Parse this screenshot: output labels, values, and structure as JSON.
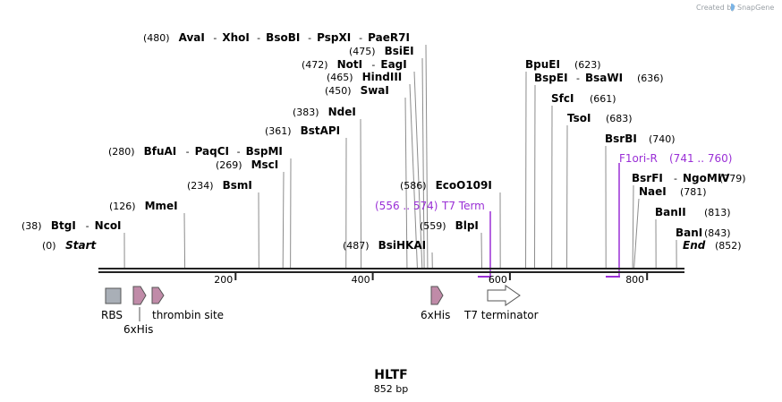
{
  "credit": {
    "created_by": "Created by",
    "brand": "SnapGene"
  },
  "title": "HLTF",
  "length_text": "852 bp",
  "length": 852,
  "ruler": {
    "ticks": [
      200,
      400,
      600,
      800
    ],
    "tick_labels": [
      "200",
      "400",
      "600",
      "800"
    ]
  },
  "sites": [
    {
      "id": "start",
      "pos": 0,
      "pos_text": "(0)",
      "names": [
        "Start"
      ],
      "italic": true
    },
    {
      "id": "btgi",
      "pos": 38,
      "pos_text": "(38)",
      "names": [
        "BtgI",
        "NcoI"
      ]
    },
    {
      "id": "mmei",
      "pos": 126,
      "pos_text": "(126)",
      "names": [
        "MmeI"
      ]
    },
    {
      "id": "bsmi",
      "pos": 234,
      "pos_text": "(234)",
      "names": [
        "BsmI"
      ]
    },
    {
      "id": "msci",
      "pos": 269,
      "pos_text": "(269)",
      "names": [
        "MscI"
      ]
    },
    {
      "id": "bfuai",
      "pos": 280,
      "pos_text": "(280)",
      "names": [
        "BfuAI",
        "PaqCI",
        "BspMI"
      ]
    },
    {
      "id": "bstapi",
      "pos": 361,
      "pos_text": "(361)",
      "names": [
        "BstAPI"
      ]
    },
    {
      "id": "ndei",
      "pos": 383,
      "pos_text": "(383)",
      "names": [
        "NdeI"
      ]
    },
    {
      "id": "swai",
      "pos": 450,
      "pos_text": "(450)",
      "names": [
        "SwaI"
      ]
    },
    {
      "id": "hindiii",
      "pos": 465,
      "pos_text": "(465)",
      "names": [
        "HindIII"
      ]
    },
    {
      "id": "noti",
      "pos": 472,
      "pos_text": "(472)",
      "names": [
        "NotI",
        "EagI"
      ]
    },
    {
      "id": "bsiei",
      "pos": 475,
      "pos_text": "(475)",
      "names": [
        "BsiEI"
      ]
    },
    {
      "id": "avai",
      "pos": 480,
      "pos_text": "(480)",
      "names": [
        "AvaI",
        "XhoI",
        "BsoBI",
        "PspXI",
        "PaeR7I"
      ]
    },
    {
      "id": "bsihkai",
      "pos": 487,
      "pos_text": "(487)",
      "names": [
        "BsiHKAI"
      ]
    },
    {
      "id": "blpi",
      "pos": 559,
      "pos_text": "(559)",
      "names": [
        "BlpI"
      ]
    },
    {
      "id": "eco0109i",
      "pos": 586,
      "pos_text": "(586)",
      "names": [
        "EcoO109I"
      ]
    },
    {
      "id": "bpuei",
      "pos": 623,
      "pos_text": "(623)",
      "names": [
        "BpuEI"
      ]
    },
    {
      "id": "bspei",
      "pos": 636,
      "pos_text": "(636)",
      "names": [
        "BspEI",
        "BsaWI"
      ]
    },
    {
      "id": "sfci",
      "pos": 661,
      "pos_text": "(661)",
      "names": [
        "SfcI"
      ]
    },
    {
      "id": "tsoi",
      "pos": 683,
      "pos_text": "(683)",
      "names": [
        "TsoI"
      ]
    },
    {
      "id": "bsrbi",
      "pos": 740,
      "pos_text": "(740)",
      "names": [
        "BsrBI"
      ]
    },
    {
      "id": "bsrfi",
      "pos": 779,
      "pos_text": "(779)",
      "names": [
        "BsrFI",
        "NgoMIV"
      ]
    },
    {
      "id": "naei",
      "pos": 781,
      "pos_text": "(781)",
      "names": [
        "NaeI"
      ]
    },
    {
      "id": "banii",
      "pos": 813,
      "pos_text": "(813)",
      "names": [
        "BanII"
      ]
    },
    {
      "id": "bani",
      "pos": 843,
      "pos_text": "(843)",
      "names": [
        "BanI"
      ]
    },
    {
      "id": "end",
      "pos": 852,
      "pos_text": "(852)",
      "names": [
        "End"
      ],
      "italic": true
    }
  ],
  "primers": [
    {
      "id": "t7term",
      "name": "T7 Term",
      "range_text": "(556 .. 574)",
      "start": 556,
      "end": 574
    },
    {
      "id": "f1ori",
      "name": "F1ori-R",
      "range_text": "(741 .. 760)",
      "start": 741,
      "end": 760
    }
  ],
  "features": [
    {
      "id": "rbs",
      "type": "rbs",
      "label": "RBS"
    },
    {
      "id": "his1",
      "type": "tag",
      "label": "6xHis"
    },
    {
      "id": "thrombin",
      "type": "site",
      "label": "thrombin site"
    },
    {
      "id": "his2",
      "type": "tag",
      "label": "6xHis"
    },
    {
      "id": "t7term",
      "type": "terminator",
      "label": "T7 terminator"
    }
  ],
  "colors": {
    "primer": "#9a2fd6",
    "tag": "#c08ba8",
    "rbs": "#a9afb7",
    "backbone": "#222222",
    "cutline": "#8c8c8c"
  }
}
